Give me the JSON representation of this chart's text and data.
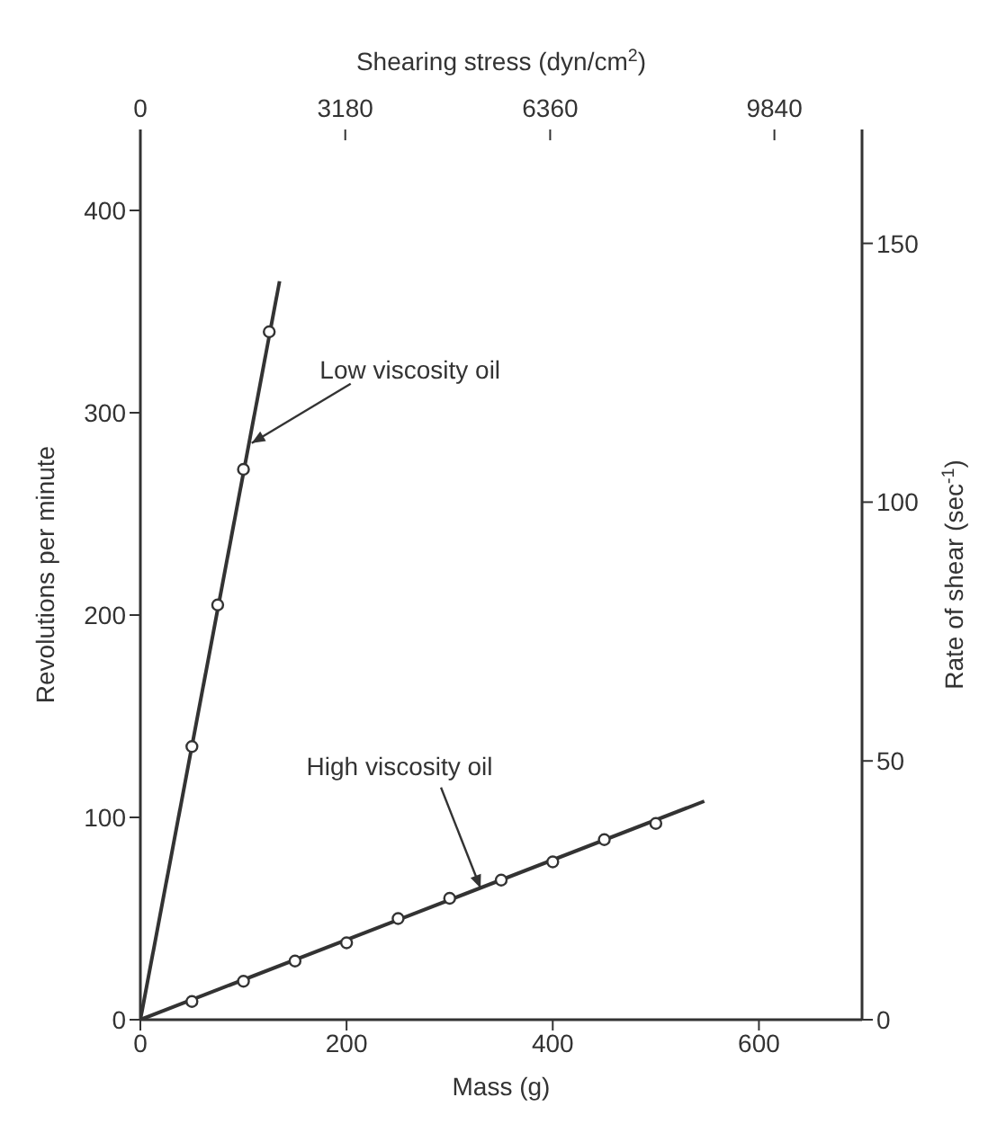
{
  "chart_data": {
    "type": "line",
    "xlabel": "Mass (g)",
    "ylabel": "Revolutions per minute",
    "x2label": "Shearing stress (dyn/cm$^{2}$)",
    "y2label": "Rate of shear (sec$^{-1}$)",
    "xlim": [
      0,
      700
    ],
    "xticks": [
      0,
      200,
      400,
      600
    ],
    "ylim": [
      0,
      440
    ],
    "yticks": [
      0,
      100,
      200,
      300,
      400
    ],
    "x2lim": [
      0,
      11200
    ],
    "x2ticks": [
      0,
      3180,
      6360,
      9840
    ],
    "y2lim": [
      0,
      172
    ],
    "y2ticks": [
      0,
      50,
      100,
      150
    ],
    "series": [
      {
        "color": "#333333",
        "x": [
          0,
          135
        ],
        "values": [
          0,
          365
        ]
      },
      {
        "type": "scatter",
        "color": "#333333",
        "marker": "circle",
        "x": [
          50,
          75,
          100,
          125
        ],
        "values": [
          135,
          205,
          272,
          340
        ]
      },
      {
        "color": "#333333",
        "x": [
          0,
          547
        ],
        "values": [
          0,
          108
        ]
      },
      {
        "type": "scatter",
        "color": "#333333",
        "marker": "circle",
        "x": [
          50,
          100,
          150,
          200,
          250,
          300,
          350,
          400,
          450,
          500
        ],
        "values": [
          9,
          19,
          29,
          38,
          50,
          60,
          69,
          78,
          89,
          97
        ]
      }
    ],
    "annotations": [
      {
        "text": "Low viscosity oil",
        "x": 108,
        "y": 285
      },
      {
        "text": "High viscosity oil",
        "x": 330,
        "y": 65
      }
    ]
  }
}
